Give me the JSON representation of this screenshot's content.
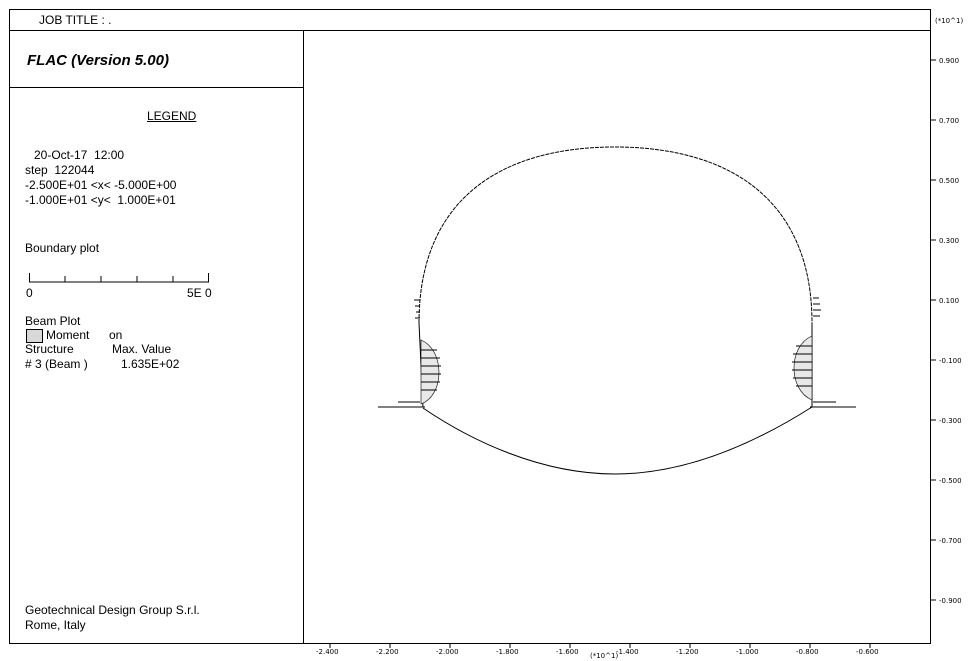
{
  "header": {
    "job_title": "JOB TITLE : ."
  },
  "panel": {
    "program_title": "FLAC (Version 5.00)",
    "legend_heading": "LEGEND",
    "date_time": "20-Oct-17  12:00",
    "step": "step  122044",
    "x_range": "-2.500E+01 <x< -5.000E+00",
    "y_range": "-1.000E+01 <y<  1.000E+01",
    "boundary_label": "Boundary plot",
    "scale_min": "0",
    "scale_max": "5E 0",
    "beam_plot_label": "Beam Plot",
    "moment_label": "Moment",
    "moment_state": "on",
    "structure_header": "Structure",
    "max_value_header": "Max. Value",
    "structure_name": "# 3 (Beam )",
    "structure_value": "1.635E+02",
    "footer_line1": "Geotechnical Design Group S.r.l.",
    "footer_line2": "Rome, Italy"
  },
  "axes": {
    "x_multiplier": "(*10^1)",
    "y_multiplier": "(*10^1)",
    "x_ticks": [
      "-2.400",
      "-2.200",
      "-2.000",
      "-1.800",
      "-1.600",
      "-1.400",
      "-1.200",
      "-1.000",
      "-0.800",
      "-0.600"
    ],
    "y_ticks": [
      "0.900",
      "0.700",
      "0.500",
      "0.300",
      "0.100",
      "-0.100",
      "-0.300",
      "-0.500",
      "-0.700",
      "-0.900"
    ]
  },
  "colors": {
    "line": "#000000",
    "fill": "#d8d8d8",
    "background": "#ffffff"
  }
}
